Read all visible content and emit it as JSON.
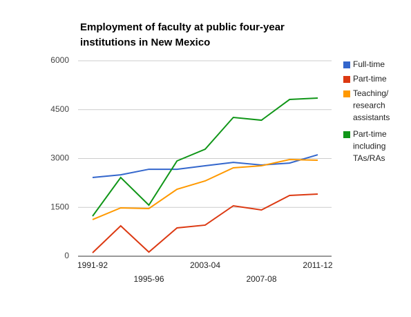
{
  "chart_data": {
    "type": "line",
    "title": [
      "Employment of faculty at public four-year",
      "institutions in New Mexico"
    ],
    "categories": [
      "1991-92",
      null,
      "1995-96",
      null,
      "2003-04",
      null,
      "2007-08",
      null,
      "2011-12"
    ],
    "series": [
      {
        "name": "Full-time",
        "color": "#3366cc",
        "values": [
          2417,
          2500,
          2670,
          2670,
          2777,
          2880,
          2800,
          2860,
          3115
        ]
      },
      {
        "name": "Part-time",
        "color": "#dc3912",
        "values": [
          106,
          933,
          127,
          870,
          955,
          1548,
          1420,
          1866,
          1908
        ]
      },
      {
        "name": "Teaching/ research assistants",
        "color": "#ff9900",
        "values": [
          1124,
          1484,
          1463,
          2056,
          2311,
          2714,
          2777,
          2968,
          2947
        ]
      },
      {
        "name": "Part-time including TAs/RAs",
        "color": "#109618",
        "values": [
          1230,
          2417,
          1569,
          2926,
          3286,
          4261,
          4176,
          4812,
          4855
        ]
      }
    ],
    "ylim": [
      0,
      6000
    ],
    "yticks": [
      0,
      1500,
      3000,
      4500,
      6000
    ],
    "grid": true,
    "legend": "right"
  }
}
